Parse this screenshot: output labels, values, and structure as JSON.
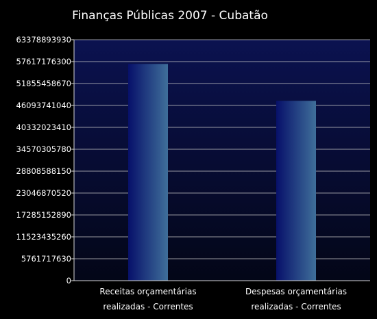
{
  "chart_data": {
    "type": "bar",
    "title": "Finanças Públicas 2007 - Cubatão",
    "xlabel": "",
    "ylabel": "",
    "categories": [
      [
        "Receitas orçamentárias",
        "realizadas - Correntes"
      ],
      [
        "Despesas orçamentárias",
        "realizadas - Correntes"
      ]
    ],
    "values": [
      57000000000,
      47300000000
    ],
    "yticks": [
      "0",
      "5761717630",
      "11523435260",
      "17285152890",
      "23046870520",
      "28808588150",
      "34570305780",
      "40332023410",
      "46093741040",
      "51855458670",
      "57617176300",
      "63378893930"
    ],
    "ylim": [
      0,
      63378893930
    ],
    "grid": true,
    "legend": "none",
    "colors": {
      "background": "#000000",
      "plot_top": "#0b1250",
      "plot_bottom": "#030617",
      "bar_dark": "#07106a",
      "bar_light": "#3f6f9a",
      "grid": "#c8c8c8",
      "text": "#ffffff"
    }
  }
}
